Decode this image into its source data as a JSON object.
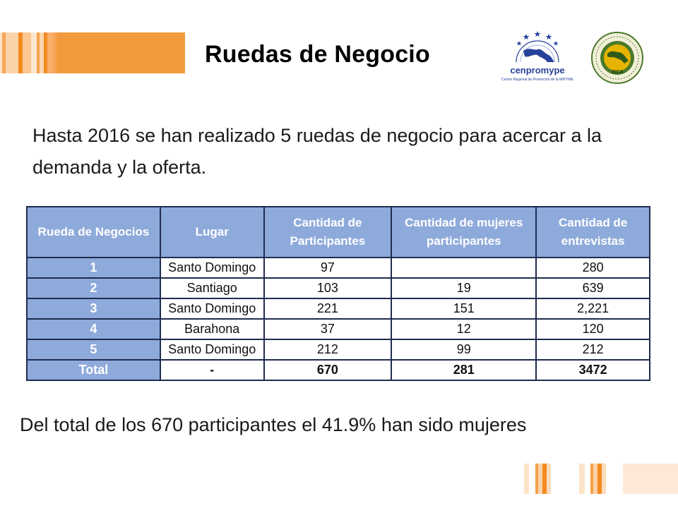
{
  "slide": {
    "title": "Ruedas de Negocio",
    "intro": "Hasta 2016 se han realizado 5 ruedas de negocio para acercar a la demanda y la oferta.",
    "summary": "Del total de los 670 participantes el 41.9% han sido mujeres"
  },
  "logos": {
    "cenpromype": {
      "name": "cenpromype",
      "subtitle": "Centro Regional de Promoción de la MIPYME"
    },
    "sica": {
      "name": "SICA"
    }
  },
  "table": {
    "headers": [
      "Rueda de Negocios",
      "Lugar",
      "Cantidad de Participantes",
      "Cantidad de mujeres participantes",
      "Cantidad de entrevistas"
    ],
    "rows": [
      [
        "1",
        "Santo Domingo",
        "97",
        "",
        "280"
      ],
      [
        "2",
        "Santiago",
        "103",
        "19",
        "639"
      ],
      [
        "3",
        "Santo Domingo",
        "221",
        "151",
        "2,221"
      ],
      [
        "4",
        "Barahona",
        "37",
        "12",
        "120"
      ],
      [
        "5",
        "Santo Domingo",
        "212",
        "99",
        "212"
      ],
      [
        "Total",
        "-",
        "670",
        "281",
        "3472"
      ]
    ]
  },
  "colors": {
    "accent_orange": "#f39a3c",
    "table_header_blue": "#8eaadb",
    "table_border": "#1f2c4f",
    "logo_blue": "#27429a",
    "logo_green": "#4a7a2a"
  }
}
